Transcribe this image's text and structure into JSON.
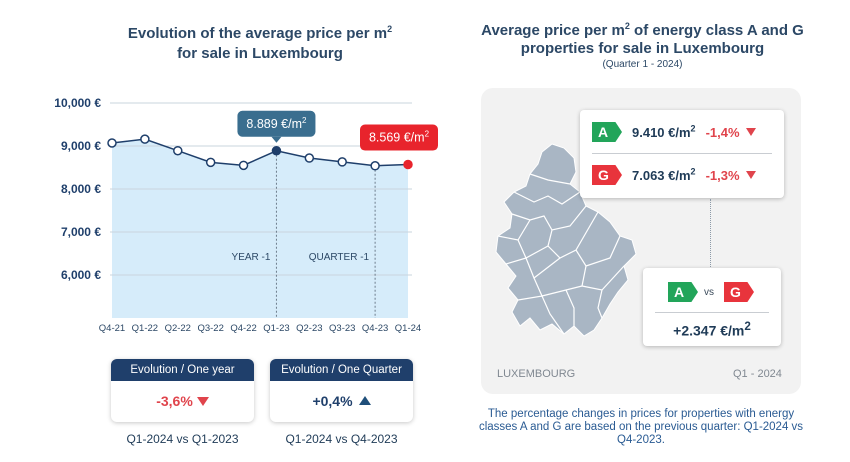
{
  "left": {
    "title_line1": "Evolution of the average price per m",
    "title_sup": "2",
    "title_line2": "for sale in Luxembourg"
  },
  "chart_data": {
    "type": "line",
    "categories": [
      "Q4-21",
      "Q1-22",
      "Q2-22",
      "Q3-22",
      "Q4-22",
      "Q1-23",
      "Q2-23",
      "Q3-23",
      "Q4-23",
      "Q1-24"
    ],
    "values": [
      9070,
      9160,
      8890,
      8620,
      8550,
      8889,
      8720,
      8630,
      8540,
      8569
    ],
    "ylim": [
      5000,
      10000
    ],
    "yticks": [
      6000,
      7000,
      8000,
      9000,
      10000
    ],
    "ytick_labels": [
      "6,000 €",
      "7,000 €",
      "8,000 €",
      "9,000 €",
      "10,000 €"
    ],
    "grid": true,
    "fill": "area",
    "colors": {
      "line": "#1f3f6b",
      "fill": "#d6ecfa",
      "highlight": "#1f3f6b",
      "last": "#e8242c",
      "grid": "#c9d4dd"
    },
    "annotations": [
      {
        "text": "8.889 €/m",
        "sup": "2",
        "category": "Q1-23",
        "color": "#3a6e8f"
      },
      {
        "text": "8.569 €/m",
        "sup": "2",
        "category": "Q1-24",
        "color": "#e8242c"
      }
    ],
    "vlines": [
      {
        "category": "Q1-23",
        "label": "YEAR -1"
      },
      {
        "category": "Q4-23",
        "label": "QUARTER -1"
      }
    ]
  },
  "evolution": [
    {
      "header": "Evolution / One year",
      "value": "-3,6%",
      "direction": "down",
      "footer": "Q1-2024 vs Q1-2023"
    },
    {
      "header": "Evolution / One Quarter",
      "value": "+0,4%",
      "direction": "up",
      "footer": "Q1-2024 vs Q4-2023"
    }
  ],
  "right": {
    "title_line1a": "Average price per m",
    "title_sup": "2",
    "title_line1b": " of energy class A and G",
    "title_line2": "properties for sale in Luxembourg",
    "subtitle": "(Quarter 1 - 2024)",
    "map_label": "LUXEMBOURG",
    "period_label": "Q1 - 2024",
    "classes": [
      {
        "badge": "A",
        "price": "9.410 €/m",
        "sup": "2",
        "change": "-1,4%",
        "color": "#22a55a"
      },
      {
        "badge": "G",
        "price": "7.063 €/m",
        "sup": "2",
        "change": "-1,3%",
        "color": "#e8343c"
      }
    ],
    "diff": {
      "left_badge": "A",
      "vs": "vs",
      "right_badge": "G",
      "value": "+2.347 €/m",
      "sup": "2"
    },
    "note": "The percentage changes in prices for properties with energy classes A and G are based on the previous quarter: Q1-2024 vs Q4-2023."
  }
}
